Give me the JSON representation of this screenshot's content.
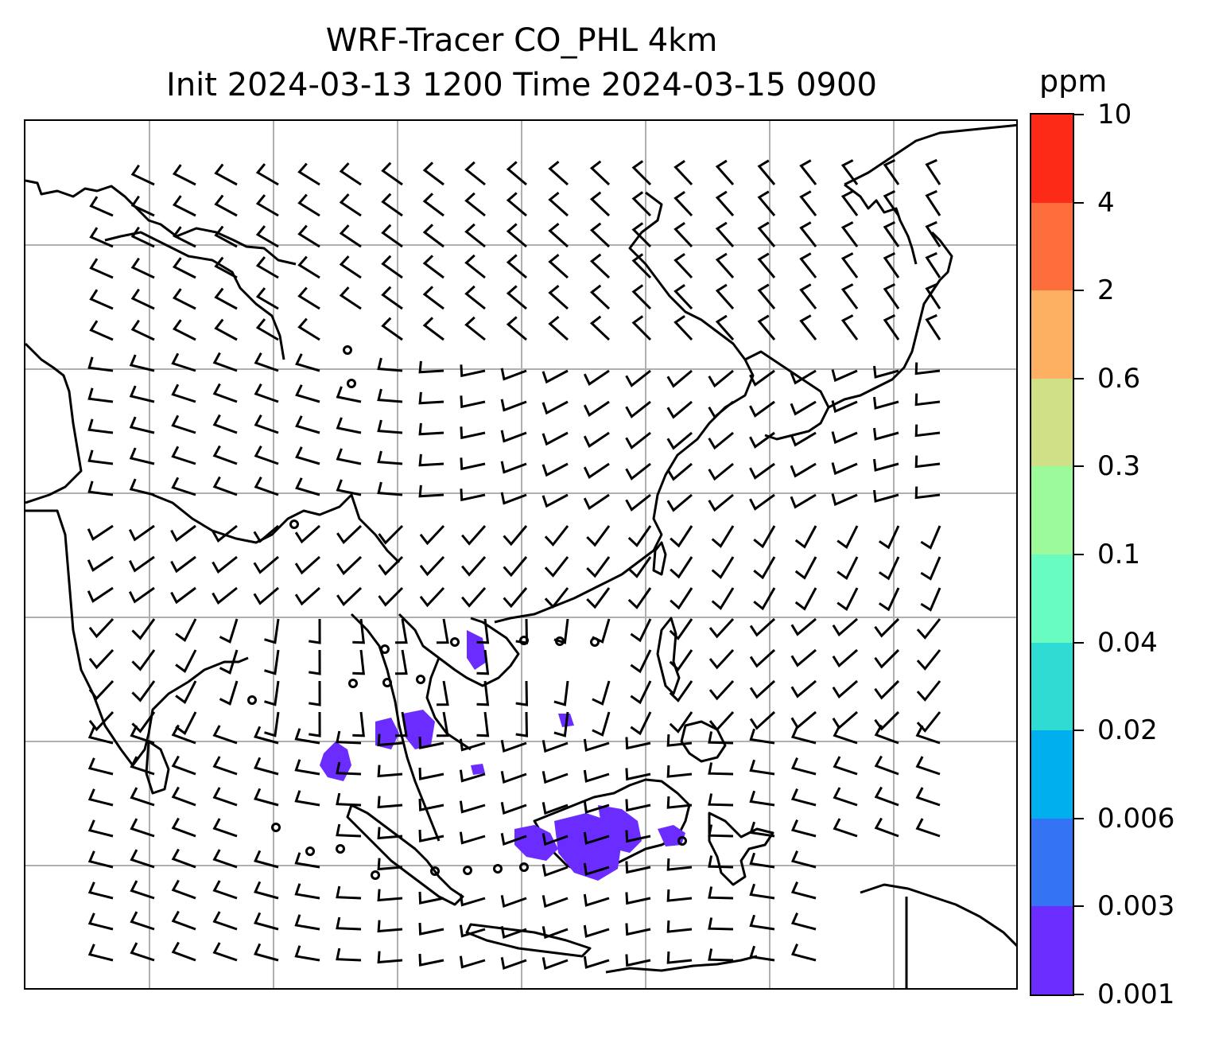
{
  "title": {
    "line1": "WRF-Tracer CO_PHL 4km",
    "line2": "Init 2024-03-13 1200 Time 2024-03-15 0900"
  },
  "colorbar": {
    "unit": "ppm",
    "levels": [
      "0.001",
      "0.003",
      "0.006",
      "0.02",
      "0.04",
      "0.1",
      "0.3",
      "0.6",
      "2",
      "4",
      "10"
    ],
    "colors": [
      "#6a2cff",
      "#3474f4",
      "#00b0ee",
      "#2edcd4",
      "#68fcc0",
      "#9cfa9a",
      "#d0e086",
      "#fdb062",
      "#fe6e3c",
      "#fe2a18"
    ]
  },
  "map": {
    "coastline_color": "#000000",
    "gridline_color": "#b0b0b0",
    "barb_color": "#000000",
    "tracer_color": "#6a2cff"
  }
}
